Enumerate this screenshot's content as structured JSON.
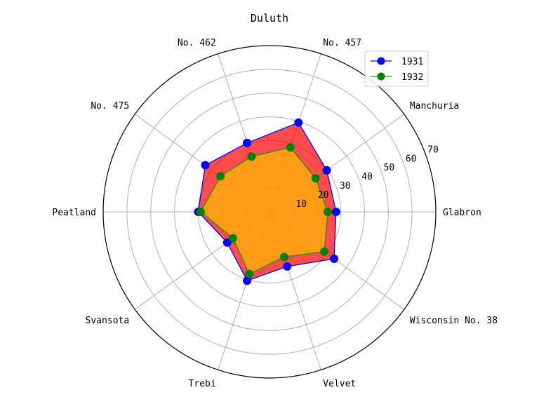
{
  "chart_data": {
    "type": "radar",
    "title": "Duluth",
    "categories": [
      "Glabron",
      "Manchuria",
      "No. 457",
      "No. 462",
      "No. 475",
      "Peatland",
      "Svansota",
      "Trebi",
      "Velvet",
      "Wisconsin No. 38"
    ],
    "radial_ticks": [
      "10",
      "20",
      "30",
      "40",
      "50",
      "60",
      "70"
    ],
    "rlim": [
      0,
      70
    ],
    "grid": true,
    "legend_position": "top-right",
    "series": [
      {
        "name": "1931",
        "values": [
          28.0,
          29.8,
          39.5,
          30.5,
          33.4,
          30.0,
          22.0,
          30.5,
          24.2,
          33.6
        ],
        "line_color": "#0000ff",
        "marker_color": "#0000ff",
        "fill_color": "#ff0000",
        "fill_opacity": 0.7
      },
      {
        "name": "1932",
        "values": [
          24.5,
          24.0,
          28.5,
          24.5,
          25.5,
          29.0,
          19.0,
          27.5,
          20.0,
          28.5
        ],
        "line_color": "#228b22",
        "marker_color": "#008000",
        "fill_color": "#ffc000",
        "fill_opacity": 0.7
      }
    ]
  }
}
